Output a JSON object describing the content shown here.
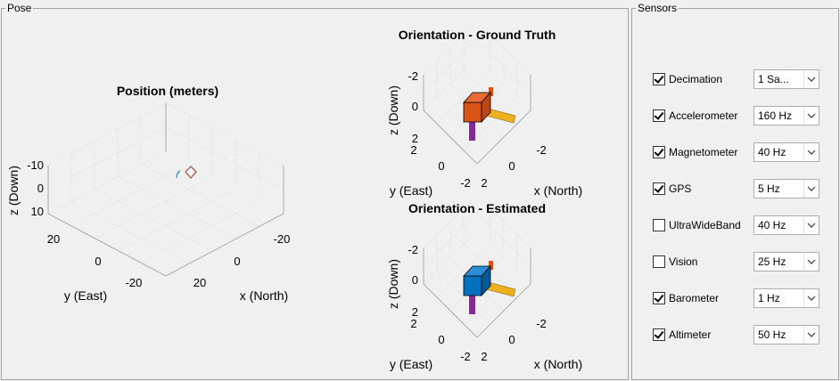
{
  "panels": {
    "pose_title": "Pose",
    "sensors_title": "Sensors"
  },
  "position_plot": {
    "title": "Position (meters)",
    "z_label": "z (Down)",
    "x_label": "x (North)",
    "y_label": "y (East)",
    "z_ticks": [
      "-10",
      "0",
      "10"
    ],
    "y_ticks": [
      "20",
      "0",
      "-20"
    ],
    "x_ticks": [
      "-20",
      "0",
      "20"
    ]
  },
  "orientation_gt": {
    "title": "Orientation - Ground Truth",
    "z_label": "z (Down)",
    "x_label": "x (North)",
    "y_label": "y (East)",
    "z_ticks": [
      "-2",
      "0",
      "2"
    ],
    "y_ticks": [
      "2",
      "0",
      "-2"
    ],
    "x_ticks": [
      "-2",
      "0",
      "2"
    ],
    "box_color": "#d95319"
  },
  "orientation_est": {
    "title": "Orientation - Estimated",
    "z_label": "z (Down)",
    "x_label": "x (North)",
    "y_label": "y (East)",
    "z_ticks": [
      "-2",
      "0",
      "2"
    ],
    "y_ticks": [
      "2",
      "0",
      "-2"
    ],
    "x_ticks": [
      "-2",
      "0",
      "2"
    ],
    "box_color": "#0072bd"
  },
  "sensors": [
    {
      "label": "Decimation",
      "checked": true,
      "value": "1 Sa..."
    },
    {
      "label": "Accelerometer",
      "checked": true,
      "value": "160 Hz"
    },
    {
      "label": "Magnetometer",
      "checked": true,
      "value": "40 Hz"
    },
    {
      "label": "GPS",
      "checked": true,
      "value": "5 Hz"
    },
    {
      "label": "UltraWideBand",
      "checked": false,
      "value": "40 Hz"
    },
    {
      "label": "Vision",
      "checked": false,
      "value": "25 Hz"
    },
    {
      "label": "Barometer",
      "checked": true,
      "value": "1 Hz"
    },
    {
      "label": "Altimeter",
      "checked": true,
      "value": "50 Hz"
    }
  ],
  "icons": {
    "checkbox": "check-icon",
    "dropdown": "chevron-down-icon"
  }
}
